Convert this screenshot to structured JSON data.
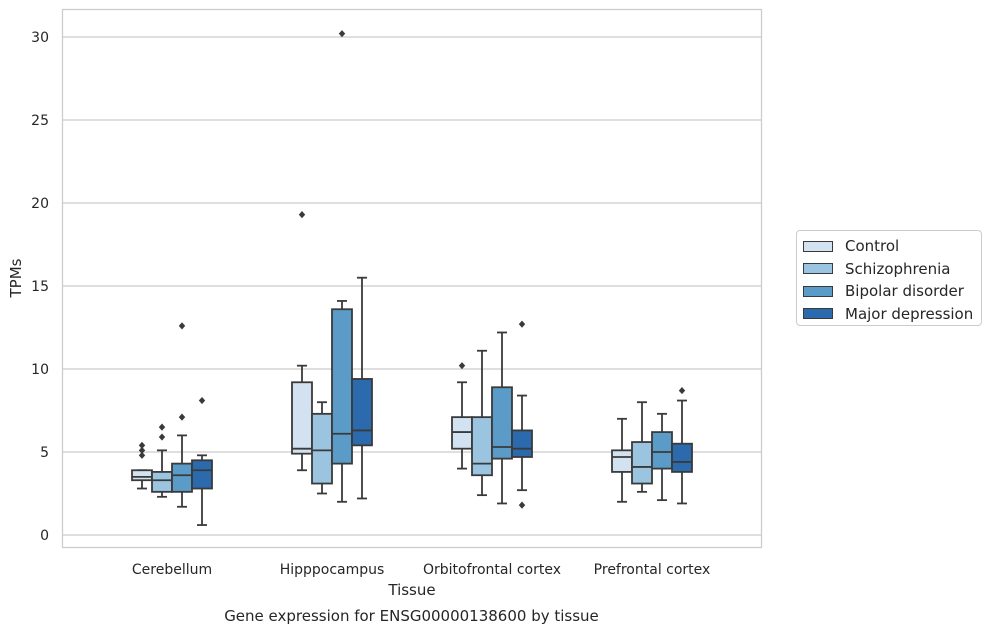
{
  "chart_data": {
    "type": "boxplot",
    "title": "",
    "xlabel": "Tissue",
    "ylabel": "TPMs",
    "caption": "Gene expression for ENSG00000138600 by tissue",
    "ylim": [
      -0.7,
      31.7
    ],
    "yticks": [
      "0",
      "5",
      "10",
      "15",
      "20",
      "25",
      "30"
    ],
    "grid": "horizontal",
    "legend_position": "right",
    "categories": [
      "Cerebellum",
      "Hipppocampus",
      "Orbitofrontal cortex",
      "Prefrontal cortex"
    ],
    "series": [
      {
        "name": "Control",
        "color": "#d3e2f1",
        "boxes": [
          {
            "whislo": 2.8,
            "q1": 3.3,
            "med": 3.5,
            "q3": 3.9,
            "whishi": 3.9,
            "fliers": [
              4.8,
              5.1,
              5.4
            ]
          },
          {
            "whislo": 3.9,
            "q1": 4.9,
            "med": 5.2,
            "q3": 9.2,
            "whishi": 10.2,
            "fliers": [
              19.3
            ]
          },
          {
            "whislo": 4.0,
            "q1": 5.2,
            "med": 6.2,
            "q3": 7.1,
            "whishi": 9.2,
            "fliers": [
              10.2
            ]
          },
          {
            "whislo": 2.0,
            "q1": 3.8,
            "med": 4.7,
            "q3": 5.1,
            "whishi": 7.0,
            "fliers": []
          }
        ]
      },
      {
        "name": "Schizophrenia",
        "color": "#9ac4df",
        "boxes": [
          {
            "whislo": 2.3,
            "q1": 2.6,
            "med": 3.3,
            "q3": 3.8,
            "whishi": 5.1,
            "fliers": [
              5.9,
              6.5
            ]
          },
          {
            "whislo": 2.5,
            "q1": 3.1,
            "med": 5.1,
            "q3": 7.3,
            "whishi": 8.0,
            "fliers": []
          },
          {
            "whislo": 2.4,
            "q1": 3.6,
            "med": 4.3,
            "q3": 7.1,
            "whishi": 11.1,
            "fliers": []
          },
          {
            "whislo": 2.6,
            "q1": 3.1,
            "med": 4.1,
            "q3": 5.6,
            "whishi": 8.0,
            "fliers": []
          }
        ]
      },
      {
        "name": "Bipolar disorder",
        "color": "#5a9bc8",
        "boxes": [
          {
            "whislo": 1.7,
            "q1": 2.6,
            "med": 3.6,
            "q3": 4.3,
            "whishi": 6.0,
            "fliers": [
              7.1,
              12.6
            ]
          },
          {
            "whislo": 2.0,
            "q1": 4.3,
            "med": 6.1,
            "q3": 13.6,
            "whishi": 14.1,
            "fliers": [
              30.2
            ]
          },
          {
            "whislo": 1.9,
            "q1": 4.6,
            "med": 5.3,
            "q3": 8.9,
            "whishi": 12.2,
            "fliers": []
          },
          {
            "whislo": 2.1,
            "q1": 4.0,
            "med": 5.0,
            "q3": 6.2,
            "whishi": 7.3,
            "fliers": []
          }
        ]
      },
      {
        "name": "Major depression",
        "color": "#2a6aad",
        "boxes": [
          {
            "whislo": 0.6,
            "q1": 2.8,
            "med": 3.9,
            "q3": 4.5,
            "whishi": 4.8,
            "fliers": [
              8.1
            ]
          },
          {
            "whislo": 2.2,
            "q1": 5.4,
            "med": 6.3,
            "q3": 9.4,
            "whishi": 15.5,
            "fliers": []
          },
          {
            "whislo": 2.7,
            "q1": 4.7,
            "med": 5.2,
            "q3": 6.3,
            "whishi": 8.4,
            "fliers": [
              1.8,
              12.7
            ]
          },
          {
            "whislo": 1.9,
            "q1": 3.8,
            "med": 4.4,
            "q3": 5.5,
            "whishi": 8.1,
            "fliers": [
              8.7
            ]
          }
        ]
      }
    ]
  }
}
